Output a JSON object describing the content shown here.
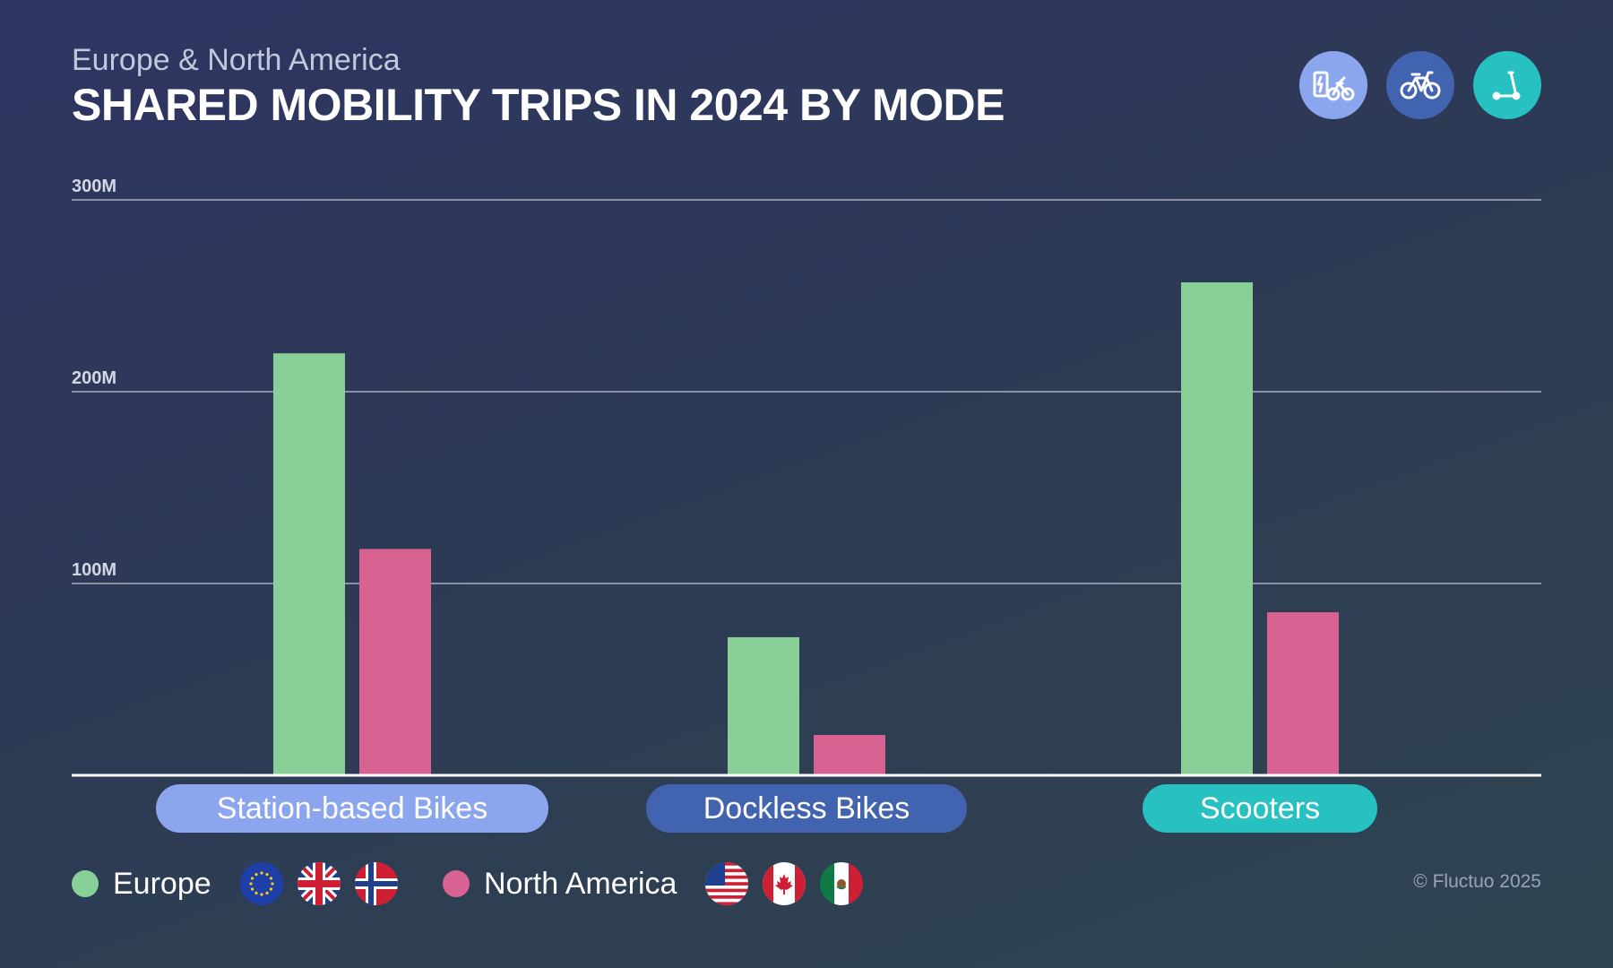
{
  "header": {
    "subtitle": "Europe & North America",
    "title": "SHARED MOBILITY TRIPS IN 2024 BY MODE"
  },
  "mode_icons": [
    {
      "icon": "station-bike-icon",
      "color": "#8ba5ee"
    },
    {
      "icon": "bicycle-icon",
      "color": "#4263b0"
    },
    {
      "icon": "scooter-icon",
      "color": "#27c1c2"
    }
  ],
  "colors": {
    "europe": "#88cf98",
    "north_america": "#d86392",
    "gridline": "#8a90a6",
    "baseline": "#ffffff",
    "tick_text": "#d4d8e4"
  },
  "chart_data": {
    "type": "bar",
    "categories": [
      "Station-based Bikes",
      "Dockless Bikes",
      "Scooters"
    ],
    "category_colors": [
      "#8ba5ee",
      "#4263b0",
      "#27c1c2"
    ],
    "series": [
      {
        "name": "Europe",
        "color": "#88cf98",
        "values": [
          220,
          72,
          257
        ]
      },
      {
        "name": "North America",
        "color": "#d86392",
        "values": [
          118,
          21,
          85
        ]
      }
    ],
    "ylim": [
      0,
      300
    ],
    "yticks": [
      100,
      200,
      300
    ],
    "ytick_labels": [
      "100M",
      "200M",
      "300M"
    ],
    "grid": true,
    "legend_position": "bottom-left"
  },
  "legend": {
    "europe_label": "Europe",
    "north_america_label": "North America",
    "europe_flags": [
      "eu-flag-icon",
      "uk-flag-icon",
      "norway-flag-icon"
    ],
    "north_america_flags": [
      "usa-flag-icon",
      "canada-flag-icon",
      "mexico-flag-icon"
    ]
  },
  "footer": {
    "copyright": "© Fluctuo 2025"
  }
}
